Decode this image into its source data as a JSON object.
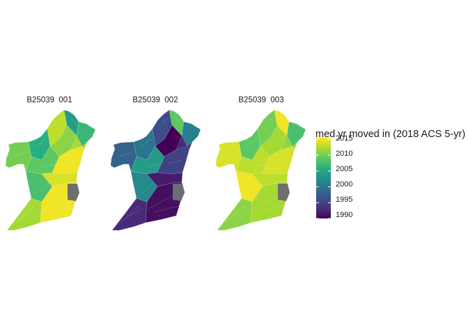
{
  "map": {
    "panels": [
      {
        "title": "B25039  001",
        "scheme": "mid",
        "unit_values": [
          2012,
          2008,
          2015,
          2010,
          2006,
          2009,
          2013,
          2004,
          2011,
          2007,
          2015,
          2014
        ]
      },
      {
        "title": "B25039  002",
        "scheme": "low",
        "unit_values": [
          1993,
          2002,
          1991,
          1998,
          2000,
          2004,
          1996,
          2009,
          1990,
          2001,
          1995,
          1992
        ]
      },
      {
        "title": "B25039  003",
        "scheme": "high",
        "unit_values": [
          2011,
          2015,
          2012,
          2014,
          2009,
          2013,
          2010,
          2015,
          2012,
          2008,
          2014,
          2013
        ]
      }
    ],
    "missing_color": "#6e6e6e"
  },
  "legend": {
    "title": "med yr moved in (2018 ACS 5-yr)",
    "breaks": [
      "2015",
      "2010",
      "2005",
      "2000",
      "1995",
      "1990"
    ],
    "range": [
      1990,
      2015.5
    ],
    "palette": "viridis",
    "colors": [
      "#440154",
      "#472d7b",
      "#3b528b",
      "#2c728e",
      "#21918c",
      "#28ae80",
      "#5ec962",
      "#addc30",
      "#fde725"
    ]
  }
}
